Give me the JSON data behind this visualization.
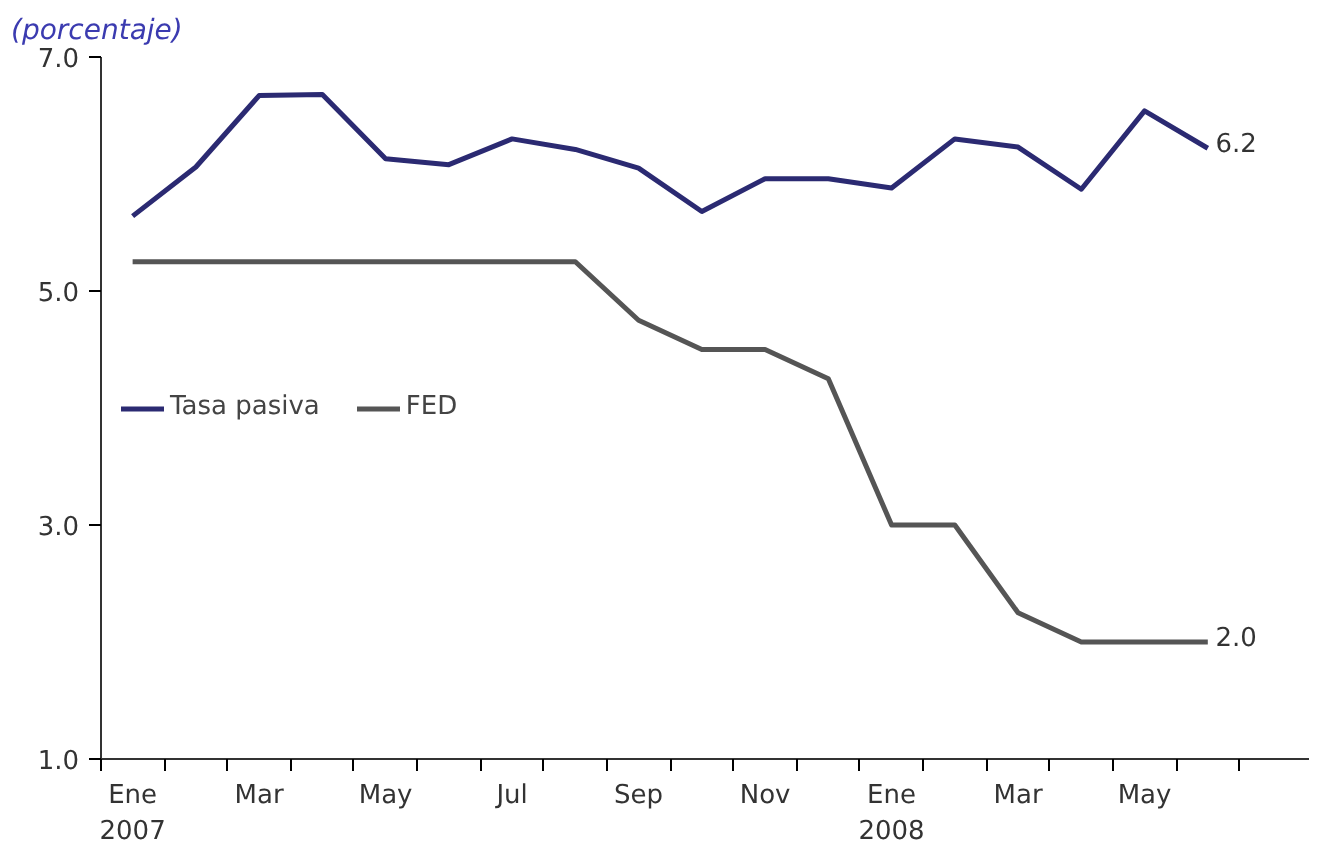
{
  "chart_data": {
    "type": "line",
    "ylabel": "(porcentaje)",
    "categories": [
      "Ene\n2007",
      null,
      "Mar",
      null,
      "May",
      null,
      "Jul",
      null,
      "Sep",
      null,
      "Nov",
      null,
      "Ene\n2008",
      null,
      "Mar",
      null,
      "May",
      null
    ],
    "series": [
      {
        "name": "Tasa pasiva",
        "color": "#2b2a72",
        "values": [
          5.64,
          6.06,
          6.67,
          6.68,
          6.13,
          6.08,
          6.3,
          6.21,
          6.05,
          5.68,
          5.96,
          5.96,
          5.88,
          6.3,
          6.23,
          5.87,
          6.54,
          6.22
        ],
        "value_labels": [
          null,
          null,
          null,
          null,
          null,
          null,
          null,
          null,
          null,
          null,
          null,
          null,
          null,
          null,
          null,
          null,
          null,
          "6.2"
        ]
      },
      {
        "name": "FED",
        "color": "#555555",
        "values": [
          5.25,
          5.25,
          5.25,
          5.25,
          5.25,
          5.25,
          5.25,
          5.25,
          4.75,
          4.5,
          4.5,
          4.25,
          3.0,
          3.0,
          2.25,
          2.0,
          2.0,
          2.0
        ],
        "value_labels": [
          null,
          null,
          null,
          null,
          null,
          null,
          null,
          null,
          null,
          null,
          null,
          null,
          null,
          null,
          null,
          null,
          null,
          "2.0"
        ]
      }
    ],
    "ylim": [
      1.0,
      7.0
    ],
    "yticks": [
      {
        "value": 1,
        "label": "1.0"
      },
      {
        "value": 3,
        "label": "3.0"
      },
      {
        "value": 5,
        "label": "5.0"
      },
      {
        "value": 7,
        "label": "7.0"
      }
    ],
    "legend": "left",
    "grid": false,
    "line_style": "solid",
    "marker": "none"
  }
}
